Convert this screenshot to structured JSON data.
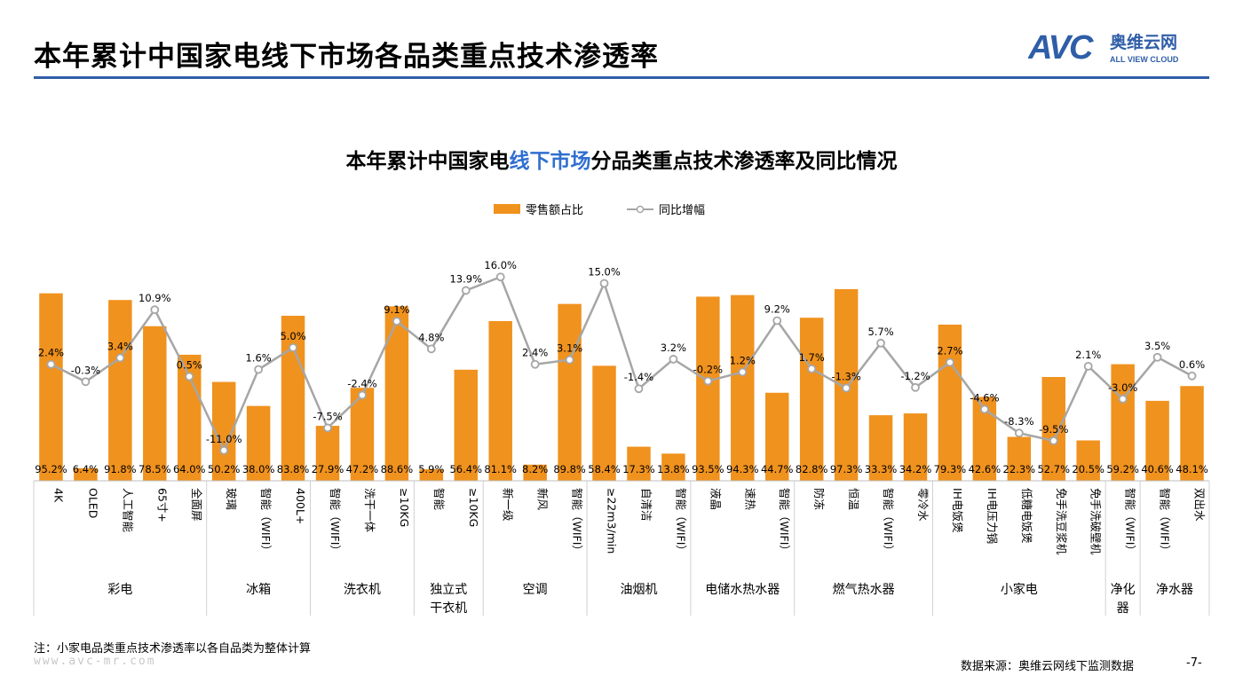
{
  "header": {
    "title": "本年累计中国家电线下市场各品类重点技术渗透率",
    "logo_letters": "AVC",
    "logo_cn": "奥维云网",
    "logo_en": "ALL VIEW CLOUD"
  },
  "colors": {
    "bar": "#f0921e",
    "line": "#a6a6a6",
    "accent": "#2f6fd0",
    "rule": "#2f5ea8"
  },
  "chart_title": {
    "part1": "本年累计中国家电",
    "highlight": "线下市场",
    "part2": "分品类重点技术渗透率及同比情况"
  },
  "chart_data": {
    "type": "bar+line",
    "legend": [
      "零售额占比",
      "同比增幅"
    ],
    "legend_position": "top",
    "grid": false,
    "categories": [
      "4K",
      "OLED",
      "人工智能",
      "65寸+",
      "全面屏",
      "玻璃",
      "智能（WIFI）",
      "400L+",
      "智能（WIFI）",
      "洗干一体",
      "≥10KG",
      "智能",
      "≥10KG",
      "新一级",
      "新风",
      "智能（WIFI）",
      "≥22m3/min",
      "自清洁",
      "智能（WIFI）",
      "液晶",
      "速热",
      "智能（WIFI）",
      "防冻",
      "恒温",
      "智能（WIFI）",
      "零冷水",
      "IH电饭煲",
      "IH电压力锅",
      "低糖电饭煲",
      "免手洗豆浆机",
      "免手洗破壁机",
      "智能（WIFI）",
      "智能（WIFI）",
      "双出水"
    ],
    "bar_values": [
      95.2,
      6.4,
      91.8,
      78.5,
      64.0,
      50.2,
      38.0,
      83.8,
      27.9,
      47.2,
      88.6,
      5.9,
      56.4,
      81.1,
      8.2,
      89.8,
      58.4,
      17.3,
      13.8,
      93.5,
      94.3,
      44.7,
      82.8,
      97.3,
      33.3,
      34.2,
      79.3,
      42.6,
      22.3,
      52.7,
      20.5,
      59.2,
      40.6,
      48.1
    ],
    "bar_labels": [
      "95.2%",
      "6.4%",
      "91.8%",
      "78.5%",
      "64.0%",
      "50.2%",
      "38.0%",
      "83.8%",
      "27.9%",
      "47.2%",
      "88.6%",
      "5.9%",
      "56.4%",
      "81.1%",
      "8.2%",
      "89.8%",
      "58.4%",
      "17.3%",
      "13.8%",
      "93.5%",
      "94.3%",
      "44.7%",
      "82.8%",
      "97.3%",
      "33.3%",
      "34.2%",
      "79.3%",
      "42.6%",
      "22.3%",
      "52.7%",
      "20.5%",
      "59.2%",
      "40.6%",
      "48.1%"
    ],
    "line_values": [
      2.4,
      -0.3,
      3.4,
      10.9,
      0.5,
      -11.0,
      1.6,
      5.0,
      -7.5,
      -2.4,
      9.1,
      4.8,
      13.9,
      16.0,
      2.4,
      3.1,
      15.0,
      -1.4,
      3.2,
      -0.2,
      1.2,
      9.2,
      1.7,
      -1.3,
      5.7,
      -1.2,
      2.7,
      -4.6,
      -8.3,
      -9.5,
      2.1,
      -3.0,
      3.5,
      0.6
    ],
    "line_labels": [
      "2.4%",
      "-0.3%",
      "3.4%",
      "10.9%",
      "0.5%",
      "-11.0%",
      "1.6%",
      "5.0%",
      "-7.5%",
      "-2.4%",
      "9.1%",
      "4.8%",
      "13.9%",
      "16.0%",
      "2.4%",
      "3.1%",
      "15.0%",
      "-1.4%",
      "3.2%",
      "-0.2%",
      "1.2%",
      "9.2%",
      "1.7%",
      "-1.3%",
      "5.7%",
      "-1.2%",
      "2.7%",
      "-4.6%",
      "-8.3%",
      "-9.5%",
      "2.1%",
      "-3.0%",
      "3.5%",
      "0.6%"
    ],
    "groups": [
      {
        "name": "彩电",
        "count": 5
      },
      {
        "name": "冰箱",
        "count": 3
      },
      {
        "name": "洗衣机",
        "count": 3
      },
      {
        "name": "独立式\n干衣机",
        "count": 2
      },
      {
        "name": "空调",
        "count": 3
      },
      {
        "name": "油烟机",
        "count": 3
      },
      {
        "name": "电储水热水器",
        "count": 3
      },
      {
        "name": "燃气热水器",
        "count": 4
      },
      {
        "name": "小家电",
        "count": 5
      },
      {
        "name": "净化\n器",
        "count": 1
      },
      {
        "name": "净水器",
        "count": 2
      }
    ],
    "bar_ylim": [
      0,
      100
    ],
    "line_ylim": [
      -12,
      17
    ]
  },
  "footer": {
    "note": "注：小家电品类重点技术渗透率以各自品类为整体计算",
    "website": "www.avc-mr.com",
    "source": "数据来源：奥维云网线下监测数据",
    "page": "-7-"
  }
}
